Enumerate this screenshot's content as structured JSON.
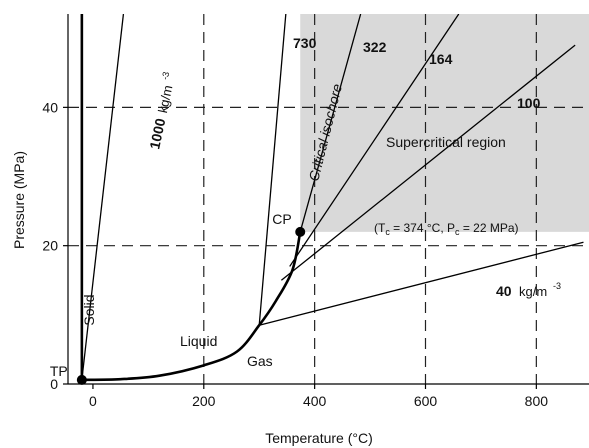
{
  "chart_data": {
    "type": "line",
    "title": "",
    "xlabel": "Temperature (°C)",
    "ylabel": "Pressure (MPa)",
    "xlim": [
      -45,
      895
    ],
    "ylim": [
      0,
      53.5
    ],
    "x_ticks": [
      0,
      200,
      400,
      600,
      800
    ],
    "y_ticks": [
      0,
      20,
      40
    ],
    "x_tick_labels": [
      "0",
      "200",
      "400",
      "600",
      "800"
    ],
    "y_tick_labels": [
      "0",
      "20",
      "40"
    ],
    "grid": "dashed",
    "supercritical_region": {
      "t_min": 374,
      "p_min": 22,
      "color": "#d9d9d9",
      "label": "Supercritical region"
    },
    "series": [
      {
        "id": "melting",
        "kind": "phase-boundary",
        "points": [
          [
            -20,
            0.6
          ],
          [
            -20,
            53.5
          ]
        ]
      },
      {
        "id": "vaporization",
        "kind": "phase-boundary",
        "points": [
          [
            -20,
            0.6
          ],
          [
            50,
            0.7
          ],
          [
            120,
            1.2
          ],
          [
            200,
            2.7
          ],
          [
            260,
            4.7
          ],
          [
            300,
            8.5
          ],
          [
            330,
            12.0
          ],
          [
            360,
            16.5
          ],
          [
            374,
            22
          ]
        ]
      },
      {
        "id": "iso-1000",
        "kind": "isochore",
        "points": [
          [
            -20,
            0.6
          ],
          [
            55,
            53.5
          ]
        ]
      },
      {
        "id": "iso-730",
        "kind": "isochore",
        "points": [
          [
            300,
            8.5
          ],
          [
            348,
            53.5
          ]
        ]
      },
      {
        "id": "iso-322",
        "kind": "isochore",
        "points": [
          [
            374,
            22
          ],
          [
            483,
            53.5
          ]
        ]
      },
      {
        "id": "iso-164",
        "kind": "isochore",
        "points": [
          [
            355,
            17
          ],
          [
            660,
            53.5
          ]
        ]
      },
      {
        "id": "iso-100",
        "kind": "isochore",
        "points": [
          [
            340,
            15
          ],
          [
            870,
            49
          ]
        ]
      },
      {
        "id": "iso-40",
        "kind": "isochore",
        "points": [
          [
            300,
            8.5
          ],
          [
            885,
            20.5
          ]
        ]
      }
    ],
    "points": [
      {
        "name": "TP",
        "t": -20,
        "p": 0.6,
        "label": "TP"
      },
      {
        "name": "CP",
        "t": 374,
        "p": 22,
        "label": "CP"
      }
    ],
    "labels": {
      "solid": "Solid",
      "liquid": "Liquid",
      "gas": "Gas",
      "iso_1000": "1000",
      "iso_1000_unit": "kg/m",
      "iso_1000_exp": "-3",
      "iso_730": "730",
      "iso_322": "322",
      "iso_164": "164",
      "iso_100": "100",
      "iso_40": "40",
      "iso_40_unit": "kg/m",
      "iso_40_exp": "-3",
      "critical_isochore": "Critical isochore",
      "cp_open": "(T",
      "cp_tsub": "c",
      "cp_mid": " = 374 °C, P",
      "cp_psub": "c",
      "cp_close": " = 22 MPa)"
    }
  }
}
